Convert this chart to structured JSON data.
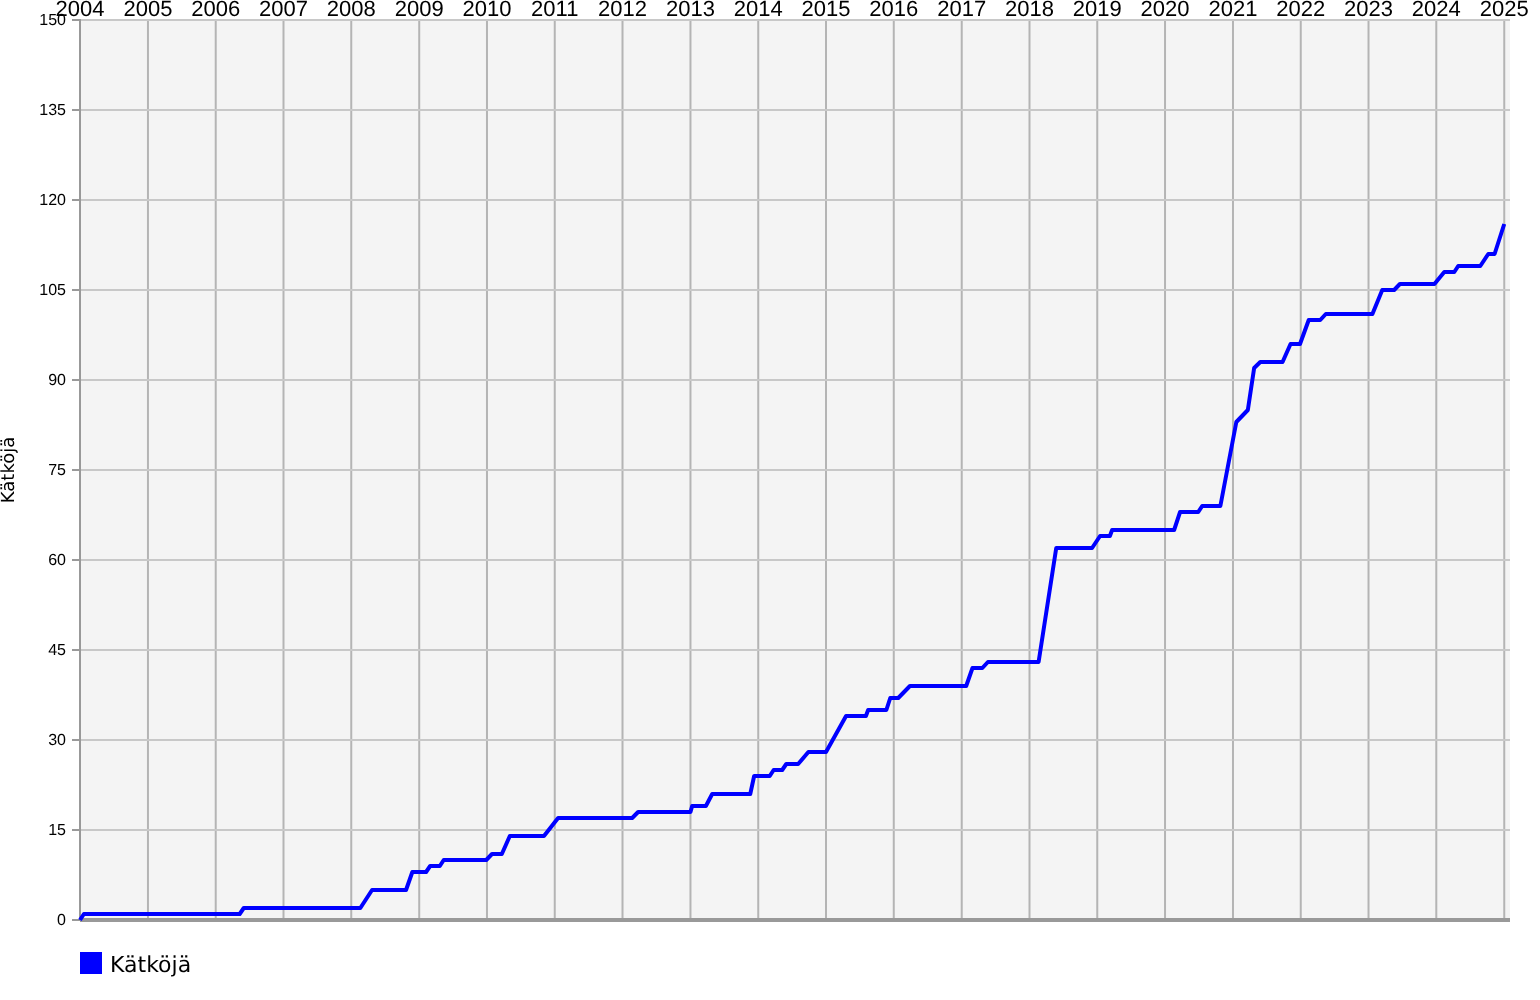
{
  "chart_data": {
    "type": "line",
    "ylabel": "Kätköjä",
    "x": [
      "2004-01-01",
      "2004-01-22",
      "2006-05-10",
      "2006-06-01",
      "2008-02-19",
      "2008-04-22",
      "2008-10-22",
      "2008-11-25",
      "2009-02-07",
      "2009-03-01",
      "2009-04-22",
      "2009-05-13",
      "2009-12-28",
      "2010-01-28",
      "2010-03-22",
      "2010-05-04",
      "2010-11-04",
      "2011-01-19",
      "2012-02-22",
      "2012-03-25",
      "2013-01-01",
      "2013-01-10",
      "2013-03-25",
      "2013-04-28",
      "2013-11-19",
      "2013-12-10",
      "2014-03-04",
      "2014-03-25",
      "2014-05-10",
      "2014-06-01",
      "2014-08-04",
      "2014-09-28",
      "2015-01-01",
      "2015-04-19",
      "2015-08-04",
      "2015-08-16",
      "2015-11-22",
      "2015-12-13",
      "2016-01-25",
      "2016-03-28",
      "2017-01-25",
      "2017-02-28",
      "2017-04-22",
      "2017-05-22",
      "2018-02-19",
      "2018-05-25",
      "2018-12-04",
      "2019-01-16",
      "2019-03-10",
      "2019-03-22",
      "2020-02-19",
      "2020-03-22",
      "2020-06-28",
      "2020-07-19",
      "2020-10-25",
      "2021-01-19",
      "2021-03-22",
      "2021-04-25",
      "2021-05-28",
      "2021-09-25",
      "2021-11-07",
      "2021-12-28",
      "2022-02-13",
      "2022-04-16",
      "2022-05-16",
      "2023-01-22",
      "2023-03-16",
      "2023-05-19",
      "2023-06-19",
      "2023-12-22",
      "2024-02-13",
      "2024-04-07",
      "2024-04-28",
      "2024-08-25",
      "2024-10-07",
      "2024-11-10",
      "2025-01-01"
    ],
    "series": [
      {
        "name": "Kätköjä",
        "color": "#0000ff",
        "values": [
          0,
          1,
          1,
          2,
          2,
          5,
          5,
          8,
          8,
          9,
          9,
          10,
          10,
          11,
          11,
          14,
          14,
          17,
          17,
          18,
          18,
          19,
          19,
          21,
          21,
          24,
          24,
          25,
          25,
          26,
          26,
          28,
          28,
          34,
          34,
          35,
          35,
          37,
          37,
          39,
          39,
          42,
          42,
          43,
          43,
          62,
          62,
          64,
          64,
          65,
          65,
          68,
          68,
          69,
          69,
          83,
          85,
          92,
          93,
          93,
          96,
          96,
          100,
          100,
          101,
          101,
          105,
          105,
          106,
          106,
          108,
          108,
          109,
          109,
          111,
          111,
          116
        ]
      }
    ],
    "xlim": [
      "2004-01-01",
      "2025-02-01"
    ],
    "xticks": [
      {
        "value": "2004-01-01",
        "label": "2004"
      },
      {
        "value": "2005-01-01",
        "label": "2005"
      },
      {
        "value": "2006-01-01",
        "label": "2006"
      },
      {
        "value": "2007-01-01",
        "label": "2007"
      },
      {
        "value": "2008-01-01",
        "label": "2008"
      },
      {
        "value": "2009-01-01",
        "label": "2009"
      },
      {
        "value": "2010-01-01",
        "label": "2010"
      },
      {
        "value": "2011-01-01",
        "label": "2011"
      },
      {
        "value": "2012-01-01",
        "label": "2012"
      },
      {
        "value": "2013-01-01",
        "label": "2013"
      },
      {
        "value": "2014-01-01",
        "label": "2014"
      },
      {
        "value": "2015-01-01",
        "label": "2015"
      },
      {
        "value": "2016-01-01",
        "label": "2016"
      },
      {
        "value": "2017-01-01",
        "label": "2017"
      },
      {
        "value": "2018-01-01",
        "label": "2018"
      },
      {
        "value": "2019-01-01",
        "label": "2019"
      },
      {
        "value": "2020-01-01",
        "label": "2020"
      },
      {
        "value": "2021-01-01",
        "label": "2021"
      },
      {
        "value": "2022-01-01",
        "label": "2022"
      },
      {
        "value": "2023-01-01",
        "label": "2023"
      },
      {
        "value": "2024-01-01",
        "label": "2024"
      },
      {
        "value": "2025-01-01",
        "label": "2025"
      }
    ],
    "ylim": [
      0,
      150
    ],
    "yticks": [
      0,
      15,
      30,
      45,
      60,
      75,
      90,
      105,
      120,
      135,
      150
    ],
    "grid": true,
    "legend": "bottom left",
    "marker": "none",
    "line_style": "solid"
  }
}
